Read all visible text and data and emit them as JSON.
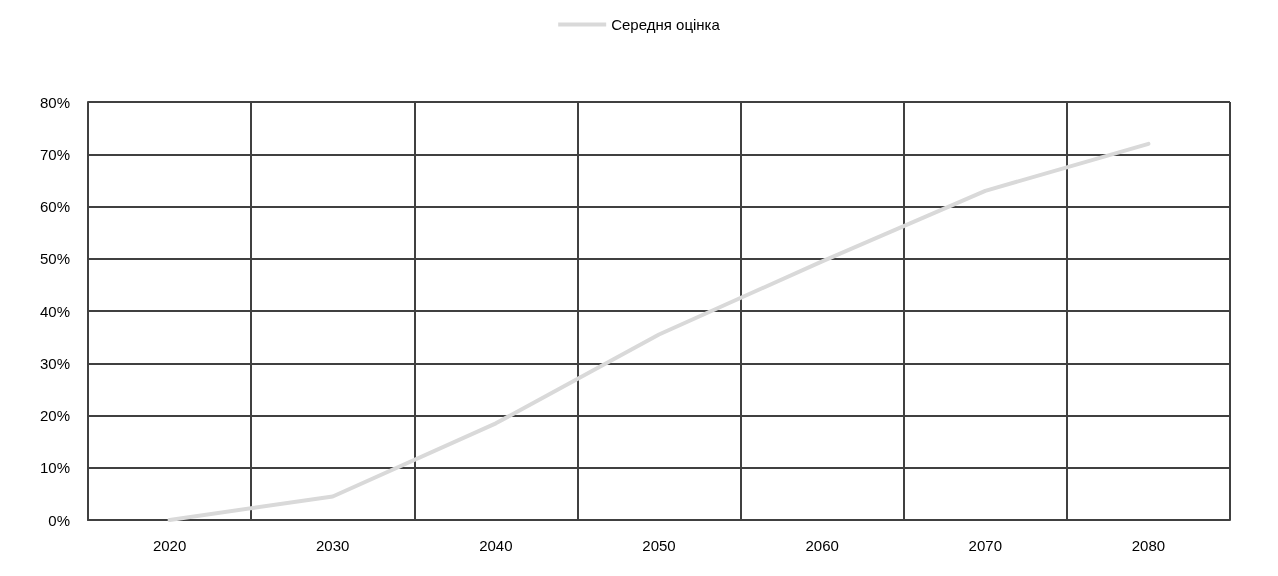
{
  "chart_data": {
    "type": "line",
    "categories": [
      "2020",
      "2030",
      "2040",
      "2050",
      "2060",
      "2070",
      "2080"
    ],
    "series": [
      {
        "name": "Середня оцінка",
        "color": "#d9d9d9",
        "values": [
          0,
          4.5,
          18.5,
          35.5,
          49.5,
          63,
          72
        ]
      }
    ],
    "ylim": [
      0,
      80
    ],
    "yticks": [
      {
        "value": 0,
        "label": "0%"
      },
      {
        "value": 10,
        "label": "10%"
      },
      {
        "value": 20,
        "label": "20%"
      },
      {
        "value": 30,
        "label": "30%"
      },
      {
        "value": 40,
        "label": "40%"
      },
      {
        "value": 50,
        "label": "50%"
      },
      {
        "value": 60,
        "label": "60%"
      },
      {
        "value": 70,
        "label": "70%"
      },
      {
        "value": 80,
        "label": "80%"
      }
    ],
    "grid": true,
    "legend": "top",
    "marker": "none",
    "line_style": "solid"
  }
}
